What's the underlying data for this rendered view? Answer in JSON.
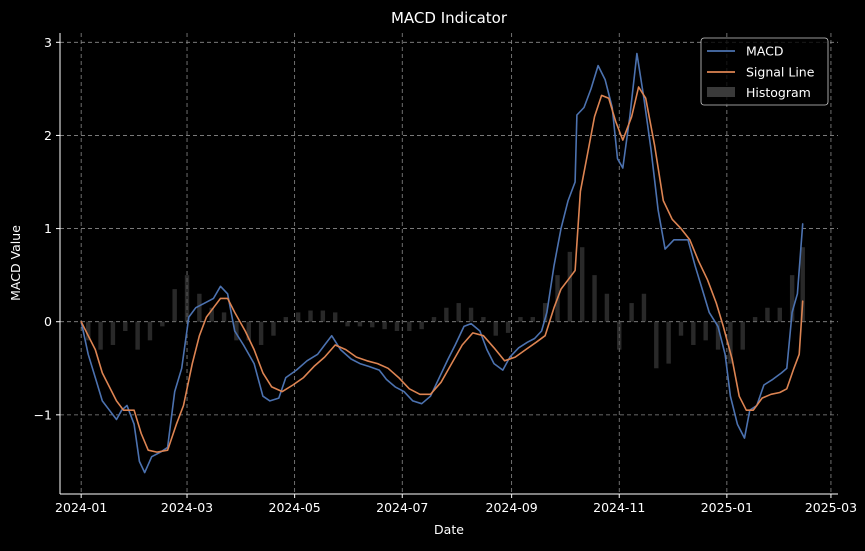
{
  "chart_data": {
    "type": "line",
    "title": "MACD Indicator",
    "xlabel": "Date",
    "ylabel": "MACD Value",
    "xlim": [
      "2023-12-20",
      "2025-03-05"
    ],
    "ylim": [
      -1.85,
      3.1
    ],
    "x_ticks": [
      "2024-01",
      "2024-03",
      "2024-05",
      "2024-07",
      "2024-09",
      "2024-11",
      "2025-01",
      "2025-03"
    ],
    "x_tick_dates": [
      "2024-01-01",
      "2024-03-01",
      "2024-05-01",
      "2024-07-01",
      "2024-09-01",
      "2024-11-01",
      "2025-01-01",
      "2025-03-01"
    ],
    "y_ticks": [
      -1,
      0,
      1,
      2,
      3
    ],
    "y_tick_labels": [
      "−1",
      "0",
      "1",
      "2",
      "3"
    ],
    "grid": true,
    "legend_position": "top-right",
    "colors": {
      "background": "#000000",
      "macd": "#4c72b0",
      "signal": "#dd8452",
      "histogram": "#4a4a4a",
      "grid": "#8a8a8a",
      "text": "#ffffff"
    },
    "series": [
      {
        "name": "MACD",
        "type": "line",
        "points": [
          [
            "2024-01-01",
            0
          ],
          [
            "2024-01-05",
            -0.35
          ],
          [
            "2024-01-09",
            -0.6
          ],
          [
            "2024-01-13",
            -0.85
          ],
          [
            "2024-01-17",
            -0.95
          ],
          [
            "2024-01-21",
            -1.05
          ],
          [
            "2024-01-24",
            -0.95
          ],
          [
            "2024-01-27",
            -0.9
          ],
          [
            "2024-01-31",
            -1.1
          ],
          [
            "2024-02-03",
            -1.5
          ],
          [
            "2024-02-06",
            -1.62
          ],
          [
            "2024-02-10",
            -1.45
          ],
          [
            "2024-02-15",
            -1.4
          ],
          [
            "2024-02-19",
            -1.35
          ],
          [
            "2024-02-23",
            -0.75
          ],
          [
            "2024-02-27",
            -0.5
          ],
          [
            "2024-03-02",
            0.05
          ],
          [
            "2024-03-06",
            0.15
          ],
          [
            "2024-03-11",
            0.2
          ],
          [
            "2024-03-16",
            0.25
          ],
          [
            "2024-03-20",
            0.38
          ],
          [
            "2024-03-24",
            0.3
          ],
          [
            "2024-03-28",
            -0.1
          ],
          [
            "2024-04-02",
            -0.25
          ],
          [
            "2024-04-08",
            -0.45
          ],
          [
            "2024-04-13",
            -0.8
          ],
          [
            "2024-04-17",
            -0.85
          ],
          [
            "2024-04-22",
            -0.82
          ],
          [
            "2024-04-26",
            -0.6
          ],
          [
            "2024-05-02",
            -0.52
          ],
          [
            "2024-05-08",
            -0.42
          ],
          [
            "2024-05-14",
            -0.35
          ],
          [
            "2024-05-18",
            -0.25
          ],
          [
            "2024-05-22",
            -0.15
          ],
          [
            "2024-05-27",
            -0.3
          ],
          [
            "2024-06-02",
            -0.4
          ],
          [
            "2024-06-07",
            -0.45
          ],
          [
            "2024-06-12",
            -0.48
          ],
          [
            "2024-06-18",
            -0.52
          ],
          [
            "2024-06-22",
            -0.62
          ],
          [
            "2024-06-27",
            -0.7
          ],
          [
            "2024-07-02",
            -0.75
          ],
          [
            "2024-07-07",
            -0.85
          ],
          [
            "2024-07-12",
            -0.88
          ],
          [
            "2024-07-17",
            -0.8
          ],
          [
            "2024-07-22",
            -0.6
          ],
          [
            "2024-07-27",
            -0.4
          ],
          [
            "2024-07-31",
            -0.25
          ],
          [
            "2024-08-05",
            -0.05
          ],
          [
            "2024-08-09",
            -0.02
          ],
          [
            "2024-08-14",
            -0.1
          ],
          [
            "2024-08-18",
            -0.3
          ],
          [
            "2024-08-22",
            -0.45
          ],
          [
            "2024-08-27",
            -0.52
          ],
          [
            "2024-08-31",
            -0.38
          ],
          [
            "2024-09-05",
            -0.28
          ],
          [
            "2024-09-10",
            -0.22
          ],
          [
            "2024-09-14",
            -0.18
          ],
          [
            "2024-09-18",
            -0.1
          ],
          [
            "2024-09-21",
            0.1
          ],
          [
            "2024-09-25",
            0.6
          ],
          [
            "2024-09-29",
            1.0
          ],
          [
            "2024-10-03",
            1.3
          ],
          [
            "2024-10-07",
            1.5
          ],
          [
            "2024-10-08",
            2.22
          ],
          [
            "2024-10-12",
            2.3
          ],
          [
            "2024-10-16",
            2.5
          ],
          [
            "2024-10-20",
            2.75
          ],
          [
            "2024-10-24",
            2.6
          ],
          [
            "2024-10-28",
            2.3
          ],
          [
            "2024-10-31",
            1.75
          ],
          [
            "2024-11-03",
            1.65
          ],
          [
            "2024-11-07",
            2.2
          ],
          [
            "2024-11-11",
            2.88
          ],
          [
            "2024-11-15",
            2.4
          ],
          [
            "2024-11-19",
            1.85
          ],
          [
            "2024-11-23",
            1.2
          ],
          [
            "2024-11-27",
            0.78
          ],
          [
            "2024-12-02",
            0.88
          ],
          [
            "2024-12-06",
            0.88
          ],
          [
            "2024-12-10",
            0.88
          ],
          [
            "2024-12-14",
            0.6
          ],
          [
            "2024-12-18",
            0.35
          ],
          [
            "2024-12-22",
            0.1
          ],
          [
            "2024-12-27",
            -0.05
          ],
          [
            "2024-12-31",
            -0.35
          ],
          [
            "2025-01-03",
            -0.8
          ],
          [
            "2025-01-07",
            -1.1
          ],
          [
            "2025-01-11",
            -1.25
          ],
          [
            "2025-01-14",
            -0.95
          ],
          [
            "2025-01-18",
            -0.9
          ],
          [
            "2025-01-22",
            -0.68
          ],
          [
            "2025-01-27",
            -0.62
          ],
          [
            "2025-02-01",
            -0.55
          ],
          [
            "2025-02-04",
            -0.5
          ],
          [
            "2025-02-07",
            0.1
          ],
          [
            "2025-02-10",
            0.3
          ],
          [
            "2025-02-13",
            1.05
          ]
        ]
      },
      {
        "name": "Signal Line",
        "type": "line",
        "points": [
          [
            "2024-01-01",
            0
          ],
          [
            "2024-01-05",
            -0.15
          ],
          [
            "2024-01-09",
            -0.3
          ],
          [
            "2024-01-13",
            -0.55
          ],
          [
            "2024-01-17",
            -0.7
          ],
          [
            "2024-01-21",
            -0.85
          ],
          [
            "2024-01-25",
            -0.95
          ],
          [
            "2024-01-31",
            -0.95
          ],
          [
            "2024-02-04",
            -1.2
          ],
          [
            "2024-02-08",
            -1.38
          ],
          [
            "2024-02-13",
            -1.4
          ],
          [
            "2024-02-19",
            -1.38
          ],
          [
            "2024-02-24",
            -1.1
          ],
          [
            "2024-02-28",
            -0.9
          ],
          [
            "2024-03-04",
            -0.45
          ],
          [
            "2024-03-08",
            -0.15
          ],
          [
            "2024-03-12",
            0.05
          ],
          [
            "2024-03-16",
            0.15
          ],
          [
            "2024-03-20",
            0.25
          ],
          [
            "2024-03-24",
            0.25
          ],
          [
            "2024-03-28",
            0.1
          ],
          [
            "2024-04-03",
            -0.1
          ],
          [
            "2024-04-08",
            -0.3
          ],
          [
            "2024-04-13",
            -0.55
          ],
          [
            "2024-04-18",
            -0.7
          ],
          [
            "2024-04-24",
            -0.75
          ],
          [
            "2024-04-30",
            -0.68
          ],
          [
            "2024-05-06",
            -0.6
          ],
          [
            "2024-05-12",
            -0.48
          ],
          [
            "2024-05-18",
            -0.38
          ],
          [
            "2024-05-24",
            -0.25
          ],
          [
            "2024-05-30",
            -0.3
          ],
          [
            "2024-06-05",
            -0.38
          ],
          [
            "2024-06-11",
            -0.42
          ],
          [
            "2024-06-17",
            -0.45
          ],
          [
            "2024-06-23",
            -0.5
          ],
          [
            "2024-06-29",
            -0.6
          ],
          [
            "2024-07-05",
            -0.72
          ],
          [
            "2024-07-11",
            -0.78
          ],
          [
            "2024-07-17",
            -0.78
          ],
          [
            "2024-07-23",
            -0.65
          ],
          [
            "2024-07-29",
            -0.45
          ],
          [
            "2024-08-04",
            -0.25
          ],
          [
            "2024-08-10",
            -0.12
          ],
          [
            "2024-08-16",
            -0.15
          ],
          [
            "2024-08-22",
            -0.28
          ],
          [
            "2024-08-28",
            -0.42
          ],
          [
            "2024-09-03",
            -0.38
          ],
          [
            "2024-09-09",
            -0.3
          ],
          [
            "2024-09-15",
            -0.22
          ],
          [
            "2024-09-20",
            -0.15
          ],
          [
            "2024-09-25",
            0.15
          ],
          [
            "2024-09-29",
            0.35
          ],
          [
            "2024-10-03",
            0.45
          ],
          [
            "2024-10-07",
            0.55
          ],
          [
            "2024-10-10",
            1.4
          ],
          [
            "2024-10-14",
            1.8
          ],
          [
            "2024-10-18",
            2.2
          ],
          [
            "2024-10-22",
            2.43
          ],
          [
            "2024-10-26",
            2.4
          ],
          [
            "2024-10-30",
            2.15
          ],
          [
            "2024-11-03",
            1.95
          ],
          [
            "2024-11-08",
            2.2
          ],
          [
            "2024-11-12",
            2.52
          ],
          [
            "2024-11-16",
            2.4
          ],
          [
            "2024-11-21",
            1.9
          ],
          [
            "2024-11-26",
            1.3
          ],
          [
            "2024-12-01",
            1.1
          ],
          [
            "2024-12-06",
            1.0
          ],
          [
            "2024-12-11",
            0.88
          ],
          [
            "2024-12-16",
            0.65
          ],
          [
            "2024-12-21",
            0.45
          ],
          [
            "2024-12-26",
            0.2
          ],
          [
            "2024-12-30",
            -0.05
          ],
          [
            "2025-01-04",
            -0.4
          ],
          [
            "2025-01-08",
            -0.8
          ],
          [
            "2025-01-12",
            -0.95
          ],
          [
            "2025-01-16",
            -0.95
          ],
          [
            "2025-01-21",
            -0.82
          ],
          [
            "2025-01-26",
            -0.78
          ],
          [
            "2025-01-31",
            -0.76
          ],
          [
            "2025-02-04",
            -0.72
          ],
          [
            "2025-02-08",
            -0.5
          ],
          [
            "2025-02-11",
            -0.35
          ],
          [
            "2025-02-13",
            0.22
          ]
        ]
      },
      {
        "name": "Histogram",
        "type": "bar",
        "points": [
          [
            "2024-01-05",
            -0.2
          ],
          [
            "2024-01-12",
            -0.3
          ],
          [
            "2024-01-19",
            -0.25
          ],
          [
            "2024-01-26",
            -0.1
          ],
          [
            "2024-02-02",
            -0.3
          ],
          [
            "2024-02-09",
            -0.2
          ],
          [
            "2024-02-16",
            -0.05
          ],
          [
            "2024-02-23",
            0.35
          ],
          [
            "2024-03-01",
            0.5
          ],
          [
            "2024-03-08",
            0.3
          ],
          [
            "2024-03-15",
            0.15
          ],
          [
            "2024-03-22",
            0.1
          ],
          [
            "2024-03-29",
            -0.2
          ],
          [
            "2024-04-05",
            -0.2
          ],
          [
            "2024-04-12",
            -0.25
          ],
          [
            "2024-04-19",
            -0.15
          ],
          [
            "2024-04-26",
            0.05
          ],
          [
            "2024-05-03",
            0.1
          ],
          [
            "2024-05-10",
            0.12
          ],
          [
            "2024-05-17",
            0.12
          ],
          [
            "2024-05-24",
            0.1
          ],
          [
            "2024-05-31",
            -0.05
          ],
          [
            "2024-06-07",
            -0.05
          ],
          [
            "2024-06-14",
            -0.06
          ],
          [
            "2024-06-21",
            -0.08
          ],
          [
            "2024-06-28",
            -0.1
          ],
          [
            "2024-07-05",
            -0.1
          ],
          [
            "2024-07-12",
            -0.08
          ],
          [
            "2024-07-19",
            0.05
          ],
          [
            "2024-07-26",
            0.15
          ],
          [
            "2024-08-02",
            0.2
          ],
          [
            "2024-08-09",
            0.15
          ],
          [
            "2024-08-16",
            0.05
          ],
          [
            "2024-08-23",
            -0.15
          ],
          [
            "2024-08-30",
            -0.12
          ],
          [
            "2024-09-06",
            0.05
          ],
          [
            "2024-09-13",
            0.05
          ],
          [
            "2024-09-20",
            0.2
          ],
          [
            "2024-09-27",
            0.5
          ],
          [
            "2024-10-04",
            0.75
          ],
          [
            "2024-10-11",
            0.8
          ],
          [
            "2024-10-18",
            0.5
          ],
          [
            "2024-10-25",
            0.3
          ],
          [
            "2024-11-01",
            -0.3
          ],
          [
            "2024-11-08",
            0.2
          ],
          [
            "2024-11-15",
            0.3
          ],
          [
            "2024-11-22",
            -0.5
          ],
          [
            "2024-11-29",
            -0.45
          ],
          [
            "2024-12-06",
            -0.15
          ],
          [
            "2024-12-13",
            -0.25
          ],
          [
            "2024-12-20",
            -0.2
          ],
          [
            "2024-12-27",
            -0.3
          ],
          [
            "2025-01-03",
            -0.45
          ],
          [
            "2025-01-10",
            -0.3
          ],
          [
            "2025-01-17",
            0.05
          ],
          [
            "2025-01-24",
            0.15
          ],
          [
            "2025-01-31",
            0.15
          ],
          [
            "2025-02-07",
            0.5
          ],
          [
            "2025-02-13",
            0.8
          ]
        ]
      }
    ]
  }
}
